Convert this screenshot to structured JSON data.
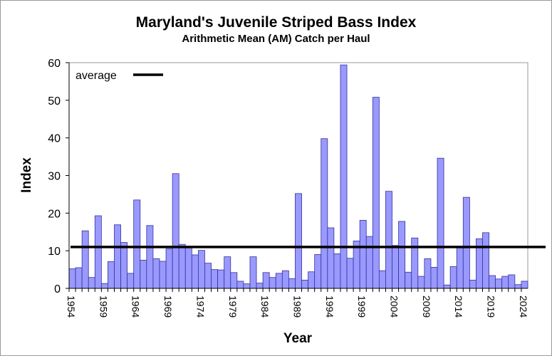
{
  "chart_data": {
    "type": "bar",
    "title": "Maryland's Juvenile Striped Bass Index",
    "subtitle": "Arithmetic Mean (AM) Catch per Haul",
    "xlabel": "Year",
    "ylabel": "Index",
    "ylim": [
      0,
      60
    ],
    "yticks": [
      0,
      10,
      20,
      30,
      40,
      50,
      60
    ],
    "xtick_labels": [
      "1954",
      "1959",
      "1964",
      "1969",
      "1974",
      "1979",
      "1984",
      "1989",
      "1994",
      "1999",
      "2004",
      "2009",
      "2014",
      "2019",
      "2024"
    ],
    "categories": [
      1954,
      1955,
      1956,
      1957,
      1958,
      1959,
      1960,
      1961,
      1962,
      1963,
      1964,
      1965,
      1966,
      1967,
      1968,
      1969,
      1970,
      1971,
      1972,
      1973,
      1974,
      1975,
      1976,
      1977,
      1978,
      1979,
      1980,
      1981,
      1982,
      1983,
      1984,
      1985,
      1986,
      1987,
      1988,
      1989,
      1990,
      1991,
      1992,
      1993,
      1994,
      1995,
      1996,
      1997,
      1998,
      1999,
      2000,
      2001,
      2002,
      2003,
      2004,
      2005,
      2006,
      2007,
      2008,
      2009,
      2010,
      2011,
      2012,
      2013,
      2014,
      2015,
      2016,
      2017,
      2018,
      2019,
      2020,
      2021,
      2022,
      2023,
      2024
    ],
    "values": [
      5.2,
      5.5,
      15.3,
      2.9,
      19.3,
      1.3,
      7.1,
      16.9,
      12.2,
      4.0,
      23.5,
      7.5,
      16.7,
      7.9,
      7.2,
      10.5,
      30.5,
      11.7,
      10.8,
      8.9,
      10.1,
      6.7,
      5.0,
      4.9,
      8.4,
      4.2,
      1.9,
      1.2,
      8.4,
      1.4,
      4.2,
      2.9,
      4.0,
      4.7,
      2.6,
      25.2,
      2.2,
      4.4,
      9.0,
      39.8,
      16.1,
      9.2,
      59.4,
      8.0,
      12.6,
      18.1,
      13.8,
      50.8,
      4.7,
      25.8,
      11.4,
      17.8,
      4.3,
      13.4,
      3.2,
      7.9,
      5.6,
      34.6,
      0.9,
      5.8,
      11.0,
      24.2,
      2.2,
      13.2,
      14.8,
      3.4,
      2.5,
      3.2,
      3.6,
      1.0,
      1.9
    ],
    "average": {
      "name": "average",
      "value": 11.0
    },
    "legend": {
      "placement": "top-left",
      "entries": [
        "average"
      ]
    },
    "grid": false,
    "colors": {
      "bar_fill": "#9999ff",
      "bar_stroke": "#333399",
      "average_line": "#000000"
    }
  }
}
